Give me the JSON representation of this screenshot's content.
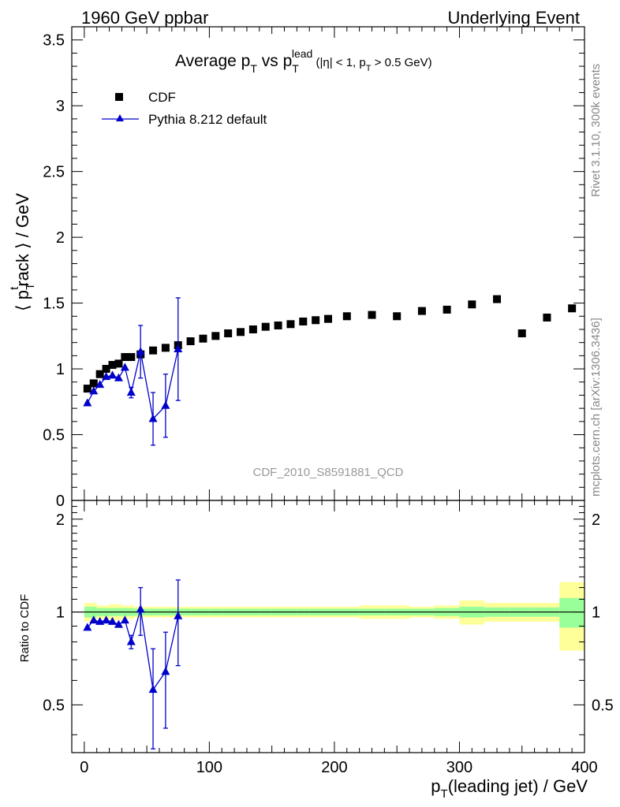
{
  "header": {
    "left": "1960 GeV ppbar",
    "right": "Underlying Event"
  },
  "side_labels": {
    "rivet": "Rivet 3.1.10,  300k events",
    "mcplots": "mcplots.cern.ch [arXiv:1306.3436]"
  },
  "title": {
    "prefix": "Average p",
    "sub1": "T",
    "mid": " vs p",
    "sub2": "T",
    "sup": "lead",
    "cut": " (|η| < 1, p",
    "sub3": "T",
    "cut_end": " > 0.5 GeV)"
  },
  "watermark": "CDF_2010_S8591881_QCD",
  "legend": {
    "data_label": "CDF",
    "mc_label": "Pythia 8.212 default"
  },
  "ylabel_top": {
    "open": "⟨ p",
    "sub": "T",
    "sup": "t",
    "rest": "rack ⟩ / GeV"
  },
  "ylabel_ratio": "Ratio to CDF",
  "xlabel": {
    "p": "p",
    "sub": "T",
    "rest": "(leading jet) / GeV"
  },
  "colors": {
    "data": "#000000",
    "mc": "#0000cc",
    "band_outer": "#ffff99",
    "band_inner": "#99ff99"
  },
  "chart_data": [
    {
      "type": "scatter",
      "panel": "main",
      "xlim": [
        -10,
        400
      ],
      "ylim": [
        0,
        3.6
      ],
      "yticks": [
        0,
        0.5,
        1,
        1.5,
        2,
        2.5,
        3,
        3.5
      ],
      "ytick_labels": [
        "0",
        "0.5",
        "1",
        "1.5",
        "2",
        "2.5",
        "3",
        "3.5"
      ],
      "xticks": [
        0,
        100,
        200,
        300,
        400
      ],
      "series": [
        {
          "name": "CDF",
          "marker": "square",
          "x": [
            2.5,
            7.5,
            12.5,
            17.5,
            22.5,
            27.5,
            32.5,
            37.5,
            45,
            55,
            65,
            75,
            85,
            95,
            105,
            115,
            125,
            135,
            145,
            155,
            165,
            175,
            185,
            195,
            210,
            230,
            250,
            270,
            290,
            310,
            330,
            350,
            370,
            390
          ],
          "y": [
            0.85,
            0.89,
            0.96,
            1.0,
            1.03,
            1.04,
            1.09,
            1.09,
            1.11,
            1.14,
            1.16,
            1.18,
            1.21,
            1.23,
            1.25,
            1.27,
            1.28,
            1.3,
            1.32,
            1.33,
            1.34,
            1.36,
            1.37,
            1.38,
            1.4,
            1.41,
            1.4,
            1.44,
            1.45,
            1.49,
            1.53,
            1.27,
            1.39,
            1.46
          ]
        },
        {
          "name": "Pythia 8.212 default",
          "marker": "triangle",
          "x": [
            2.5,
            7.5,
            12.5,
            17.5,
            22.5,
            27.5,
            32.5,
            37.5,
            45,
            55,
            65,
            75
          ],
          "y": [
            0.74,
            0.83,
            0.88,
            0.94,
            0.95,
            0.93,
            1.01,
            0.82,
            1.13,
            0.62,
            0.72,
            1.15
          ],
          "yerr": [
            0.01,
            0.01,
            0.01,
            0.02,
            0.02,
            0.02,
            0.03,
            0.04,
            0.2,
            0.2,
            0.24,
            0.39
          ]
        }
      ]
    },
    {
      "type": "scatter",
      "panel": "ratio",
      "xlim": [
        -10,
        400
      ],
      "ylim": [
        0.35,
        2.3
      ],
      "log_y": true,
      "yticks": [
        0.5,
        1,
        2
      ],
      "ytick_labels": [
        "0.5",
        "1",
        "2"
      ],
      "xticks": [
        0,
        100,
        200,
        300,
        400
      ],
      "xtick_labels": [
        "0",
        "100",
        "200",
        "300",
        "400"
      ],
      "bands": {
        "edges": [
          0,
          10,
          20,
          30,
          40,
          50,
          60,
          70,
          80,
          90,
          100,
          110,
          120,
          130,
          140,
          150,
          160,
          170,
          180,
          190,
          200,
          220,
          240,
          260,
          280,
          300,
          320,
          340,
          360,
          380,
          400
        ],
        "inner_lo": [
          0.96,
          0.97,
          0.97,
          0.97,
          0.975,
          0.975,
          0.975,
          0.975,
          0.975,
          0.975,
          0.975,
          0.975,
          0.975,
          0.975,
          0.975,
          0.975,
          0.975,
          0.975,
          0.975,
          0.975,
          0.975,
          0.975,
          0.975,
          0.975,
          0.97,
          0.96,
          0.965,
          0.965,
          0.965,
          0.89
        ],
        "inner_hi": [
          1.04,
          1.03,
          1.03,
          1.03,
          1.025,
          1.025,
          1.025,
          1.025,
          1.025,
          1.025,
          1.025,
          1.025,
          1.025,
          1.025,
          1.025,
          1.025,
          1.025,
          1.025,
          1.025,
          1.025,
          1.025,
          1.025,
          1.025,
          1.025,
          1.03,
          1.04,
          1.035,
          1.035,
          1.035,
          1.11
        ],
        "outer_lo": [
          0.93,
          0.95,
          0.94,
          0.95,
          0.96,
          0.96,
          0.96,
          0.96,
          0.96,
          0.96,
          0.96,
          0.96,
          0.96,
          0.96,
          0.96,
          0.96,
          0.96,
          0.96,
          0.96,
          0.96,
          0.96,
          0.95,
          0.95,
          0.96,
          0.95,
          0.91,
          0.93,
          0.93,
          0.93,
          0.75
        ],
        "outer_hi": [
          1.07,
          1.05,
          1.06,
          1.05,
          1.04,
          1.04,
          1.04,
          1.04,
          1.04,
          1.04,
          1.04,
          1.04,
          1.04,
          1.04,
          1.04,
          1.04,
          1.04,
          1.04,
          1.04,
          1.04,
          1.04,
          1.05,
          1.05,
          1.04,
          1.05,
          1.09,
          1.07,
          1.07,
          1.07,
          1.25
        ]
      },
      "series": [
        {
          "name": "Pythia 8.212 default",
          "marker": "triangle",
          "x": [
            2.5,
            7.5,
            12.5,
            17.5,
            22.5,
            27.5,
            32.5,
            37.5,
            45,
            55,
            65,
            75
          ],
          "y": [
            0.89,
            0.94,
            0.93,
            0.94,
            0.93,
            0.91,
            0.94,
            0.8,
            1.02,
            0.56,
            0.64,
            0.97
          ],
          "yerr": [
            0.01,
            0.01,
            0.01,
            0.02,
            0.02,
            0.02,
            0.03,
            0.04,
            0.18,
            0.2,
            0.22,
            0.3
          ]
        }
      ]
    }
  ]
}
